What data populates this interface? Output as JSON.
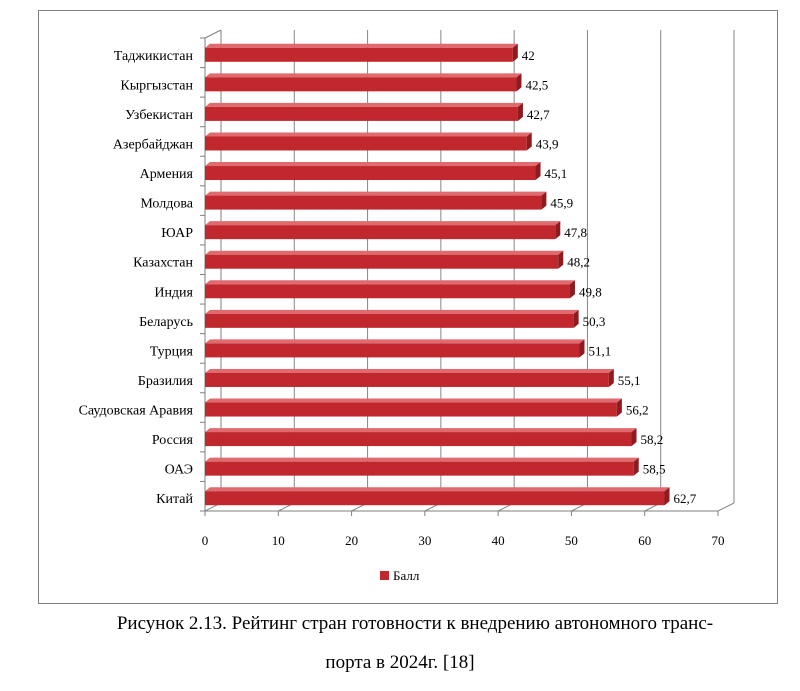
{
  "chart_data": {
    "type": "bar",
    "orientation": "horizontal",
    "categories": [
      "Таджикистан",
      "Кыргызстан",
      "Узбекистан",
      "Азербайджан",
      "Армения",
      "Молдова",
      "ЮАР",
      "Казахстан",
      "Индия",
      "Беларусь",
      "Турция",
      "Бразилия",
      "Саудовская Аравия",
      "Россия",
      "ОАЭ",
      "Китай"
    ],
    "series": [
      {
        "name": "Балл",
        "values": [
          42,
          42.5,
          42.7,
          43.9,
          45.1,
          45.9,
          47.8,
          48.2,
          49.8,
          50.3,
          51.1,
          55.1,
          56.2,
          58.2,
          58.5,
          62.7
        ]
      }
    ],
    "value_labels": [
      "42",
      "42,5",
      "42,7",
      "43,9",
      "45,1",
      "45,9",
      "47,8",
      "48,2",
      "49,8",
      "50,3",
      "51,1",
      "55,1",
      "56,2",
      "58,2",
      "58,5",
      "62,7"
    ],
    "xlim": [
      0,
      70
    ],
    "xticks": [
      0,
      10,
      20,
      30,
      40,
      50,
      60,
      70
    ],
    "grid": true,
    "legend": "bottom",
    "colors": {
      "bar": "#c0282d",
      "bar_top": "#e06a6e",
      "bar_side": "#8e1b1f",
      "grid": "#868686",
      "axis": "#7f7f7f"
    }
  },
  "caption": {
    "line1": "Рисунок 2.13. Рейтинг стран готовности к внедрению автономного транс-",
    "line2": "порта в 2024г. [18]"
  }
}
